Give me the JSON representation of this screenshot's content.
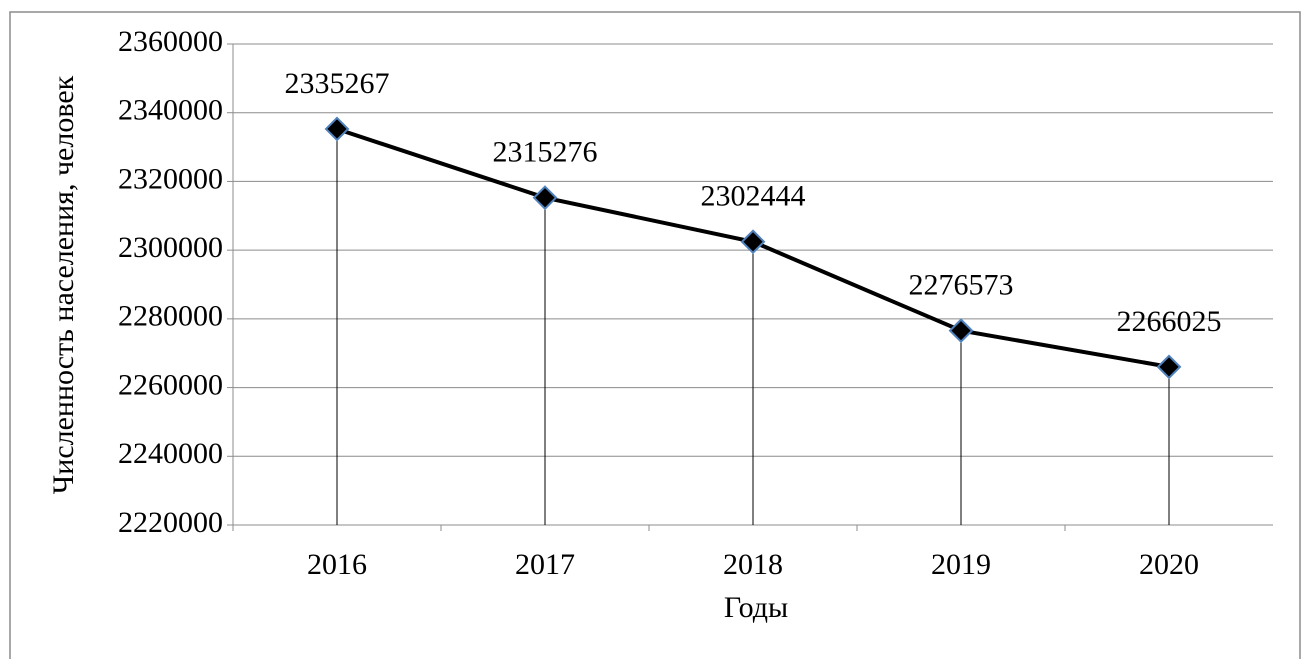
{
  "chart_data": {
    "type": "line",
    "categories": [
      "2016",
      "2017",
      "2018",
      "2019",
      "2020"
    ],
    "values": [
      2335267,
      2315276,
      2302444,
      2276573,
      2266025
    ],
    "color": "#000000",
    "marker_color": "#000000",
    "marker_edge": "#4f81bd",
    "drop_lines": true,
    "xlabel": "Годы",
    "ylabel": "Численность населения, человек",
    "ylim": [
      2220000,
      2360000
    ],
    "yticks": [
      2220000,
      2240000,
      2260000,
      2280000,
      2300000,
      2320000,
      2340000,
      2360000
    ],
    "grid": true,
    "data_labels": true
  }
}
